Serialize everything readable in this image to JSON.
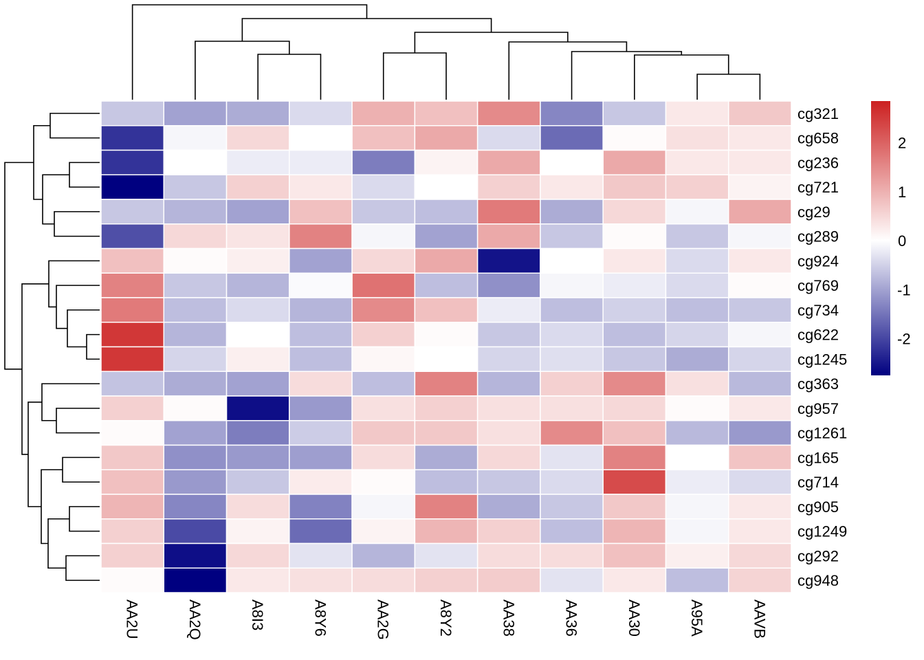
{
  "chart_data": {
    "type": "heatmap",
    "title": "",
    "xlabel": "",
    "ylabel": "",
    "columns": [
      "AA2U",
      "AA2Q",
      "A8I3",
      "A8Y6",
      "AA2G",
      "A8Y2",
      "AA38",
      "AA36",
      "AA30",
      "A95A",
      "AAVB"
    ],
    "rows": [
      "cg321",
      "cg658",
      "cg236",
      "cg721",
      "cg29",
      "cg289",
      "cg924",
      "cg769",
      "cg734",
      "cg622",
      "cg1245",
      "cg363",
      "cg957",
      "cg1261",
      "cg165",
      "cg714",
      "cg905",
      "cg1249",
      "cg292",
      "cg948"
    ],
    "values": [
      [
        -0.6,
        -1.0,
        -0.9,
        -0.4,
        1.0,
        0.8,
        1.5,
        -1.3,
        -0.6,
        0.3,
        0.7
      ],
      [
        -2.2,
        -0.1,
        0.5,
        0.0,
        0.8,
        1.1,
        -0.4,
        -1.6,
        0.05,
        0.4,
        0.3
      ],
      [
        -2.2,
        0.0,
        -0.2,
        -0.2,
        -1.4,
        0.15,
        1.1,
        0.0,
        1.1,
        0.3,
        0.3
      ],
      [
        -2.75,
        -0.6,
        0.6,
        0.3,
        -0.4,
        0.0,
        0.6,
        0.3,
        0.7,
        0.6,
        0.15
      ],
      [
        -0.6,
        -0.8,
        -1.0,
        0.8,
        -0.6,
        -0.7,
        1.7,
        -0.9,
        0.5,
        -0.1,
        1.1
      ],
      [
        -1.9,
        0.5,
        0.35,
        1.6,
        -0.1,
        -1.0,
        1.1,
        -0.6,
        0.05,
        -0.6,
        -0.1
      ],
      [
        0.8,
        0.05,
        0.2,
        -1.0,
        0.5,
        1.1,
        -2.55,
        0.0,
        0.3,
        -0.4,
        0.3
      ],
      [
        1.6,
        -0.6,
        -0.8,
        -0.05,
        1.8,
        -0.7,
        -1.2,
        -0.1,
        -0.2,
        -0.4,
        0.05
      ],
      [
        1.7,
        -0.7,
        -0.4,
        -0.8,
        1.5,
        0.8,
        -0.2,
        -0.7,
        -0.5,
        -0.7,
        -0.6
      ],
      [
        2.55,
        -0.8,
        0.0,
        -0.7,
        0.6,
        0.05,
        -0.6,
        -0.4,
        -0.7,
        -0.45,
        -0.1
      ],
      [
        2.55,
        -0.45,
        0.2,
        -0.7,
        0.1,
        0.0,
        -0.45,
        -0.35,
        -0.6,
        -0.9,
        -0.45
      ],
      [
        -0.65,
        -0.9,
        -1.0,
        0.45,
        -0.7,
        1.6,
        -0.8,
        0.6,
        1.5,
        0.4,
        -0.75
      ],
      [
        0.6,
        0.05,
        -2.6,
        -1.1,
        0.4,
        0.6,
        0.4,
        0.4,
        0.5,
        0.05,
        0.3
      ],
      [
        0.05,
        -1.0,
        -1.4,
        -0.55,
        0.7,
        0.7,
        0.4,
        1.5,
        0.8,
        -0.75,
        -1.1
      ],
      [
        0.7,
        -1.2,
        -1.1,
        -1.05,
        0.45,
        -0.9,
        0.5,
        -0.3,
        1.6,
        0.0,
        0.75
      ],
      [
        0.8,
        -1.1,
        -0.6,
        0.25,
        0.05,
        -0.7,
        -0.6,
        -0.4,
        2.3,
        -0.2,
        -0.4
      ],
      [
        0.95,
        -1.3,
        0.45,
        -1.35,
        -0.1,
        1.6,
        -0.9,
        -0.6,
        0.7,
        -0.1,
        0.3
      ],
      [
        0.6,
        -1.95,
        0.15,
        -1.6,
        0.15,
        0.95,
        0.6,
        -0.7,
        0.95,
        -0.1,
        0.3
      ],
      [
        0.6,
        -2.6,
        0.5,
        -0.3,
        -0.8,
        -0.3,
        0.45,
        0.45,
        0.8,
        0.2,
        0.5
      ],
      [
        0.05,
        -2.75,
        0.3,
        0.4,
        0.45,
        0.6,
        0.65,
        -0.3,
        0.3,
        -0.7,
        0.55
      ]
    ],
    "color_scale": {
      "min": -2.75,
      "max": 2.85,
      "low_color": "#000080",
      "mid_color": "#ffffff",
      "high_color": "#cc2020",
      "ticks": [
        2,
        1,
        0,
        -1,
        -2
      ]
    },
    "row_dendrogram": true,
    "col_dendrogram": true,
    "legend": "right",
    "grid": false,
    "cell_border_color": "#ffffff"
  }
}
